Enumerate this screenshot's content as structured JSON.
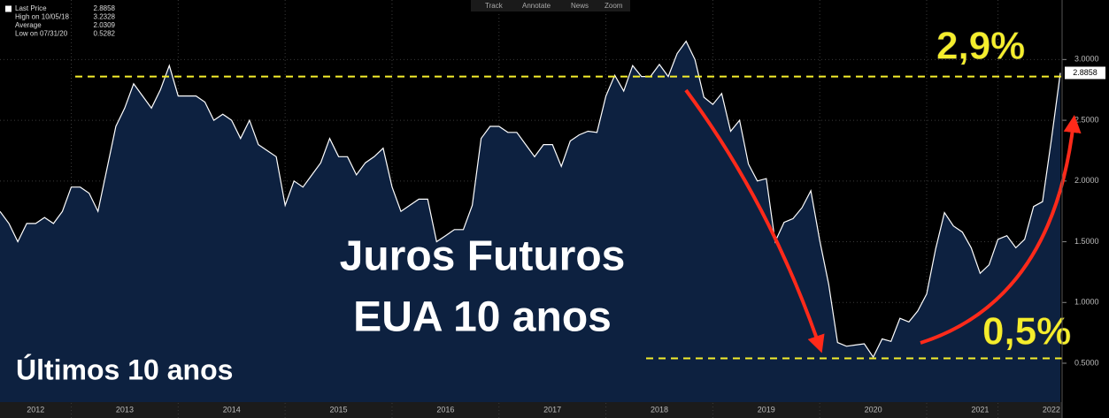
{
  "chart_data": {
    "type": "area",
    "toolbar": [
      "Track",
      "Annotate",
      "News",
      "Zoom"
    ],
    "legend": [
      {
        "label": "Last Price",
        "value": "2.8858"
      },
      {
        "label": "High on 10/05/18",
        "value": "3.2328"
      },
      {
        "label": "Average",
        "value": "2.0309"
      },
      {
        "label": "Low on 07/31/20",
        "value": "0.5282"
      }
    ],
    "annotations": [
      "Juros Futuros",
      "EUA 10 anos",
      "Últimos 10 anos"
    ],
    "hlines": [
      {
        "value": 2.86,
        "label": "2,9%"
      },
      {
        "value": 0.54,
        "label": "0,5%"
      }
    ],
    "categories": [
      null,
      null,
      null,
      null,
      "2012",
      null,
      null,
      null,
      null,
      null,
      null,
      null,
      null,
      null,
      "2013",
      null,
      null,
      null,
      null,
      null,
      null,
      null,
      null,
      null,
      null,
      null,
      "2014",
      null,
      null,
      null,
      null,
      null,
      null,
      null,
      null,
      null,
      null,
      null,
      "2015",
      null,
      null,
      null,
      null,
      null,
      null,
      null,
      null,
      null,
      null,
      null,
      "2016",
      null,
      null,
      null,
      null,
      null,
      null,
      null,
      null,
      null,
      null,
      null,
      "2017",
      null,
      null,
      null,
      null,
      null,
      null,
      null,
      null,
      null,
      null,
      null,
      "2018",
      null,
      null,
      null,
      null,
      null,
      null,
      null,
      null,
      null,
      null,
      null,
      "2019",
      null,
      null,
      null,
      null,
      null,
      null,
      null,
      null,
      null,
      null,
      null,
      "2020",
      null,
      null,
      null,
      null,
      null,
      null,
      null,
      null,
      null,
      null,
      null,
      "2021",
      null,
      null,
      null,
      null,
      null,
      null,
      null,
      "2022",
      null
    ],
    "series": [
      {
        "name": "Last Price",
        "color": "#ffffff",
        "fill": "#0d2140",
        "values": [
          1.75,
          1.65,
          1.5,
          1.65,
          1.65,
          1.7,
          1.65,
          1.75,
          1.95,
          1.95,
          1.9,
          1.75,
          2.1,
          2.45,
          2.6,
          2.8,
          2.7,
          2.6,
          2.75,
          2.95,
          2.7,
          2.7,
          2.7,
          2.65,
          2.5,
          2.55,
          2.5,
          2.35,
          2.5,
          2.3,
          2.25,
          2.2,
          1.8,
          2.0,
          1.95,
          2.05,
          2.15,
          2.35,
          2.2,
          2.2,
          2.05,
          2.15,
          2.2,
          2.27,
          1.95,
          1.75,
          1.8,
          1.85,
          1.85,
          1.5,
          1.55,
          1.6,
          1.6,
          1.8,
          2.35,
          2.45,
          2.45,
          2.4,
          2.4,
          2.3,
          2.2,
          2.3,
          2.3,
          2.12,
          2.33,
          2.38,
          2.41,
          2.4,
          2.7,
          2.87,
          2.74,
          2.95,
          2.86,
          2.86,
          2.96,
          2.86,
          3.05,
          3.15,
          3.0,
          2.69,
          2.63,
          2.72,
          2.41,
          2.5,
          2.14,
          2.0,
          2.02,
          1.5,
          1.66,
          1.69,
          1.78,
          1.92,
          1.51,
          1.15,
          0.67,
          0.64,
          0.65,
          0.66,
          0.55,
          0.7,
          0.68,
          0.87,
          0.84,
          0.93,
          1.07,
          1.44,
          1.74,
          1.63,
          1.58,
          1.45,
          1.24,
          1.31,
          1.52,
          1.55,
          1.45,
          1.52,
          1.79,
          1.83,
          2.34,
          2.89
        ]
      }
    ],
    "ylim": [
      0.18,
      3.49
    ],
    "yticks": [
      {
        "value": 0.5,
        "label": "0.5000"
      },
      {
        "value": 1.0,
        "label": "1.0000"
      },
      {
        "value": 1.5,
        "label": "1.5000"
      },
      {
        "value": 2.0,
        "label": "2.0000"
      },
      {
        "value": 2.5,
        "label": "2.5000"
      },
      {
        "value": 3.0,
        "label": "3.0000"
      }
    ],
    "grid": true
  }
}
